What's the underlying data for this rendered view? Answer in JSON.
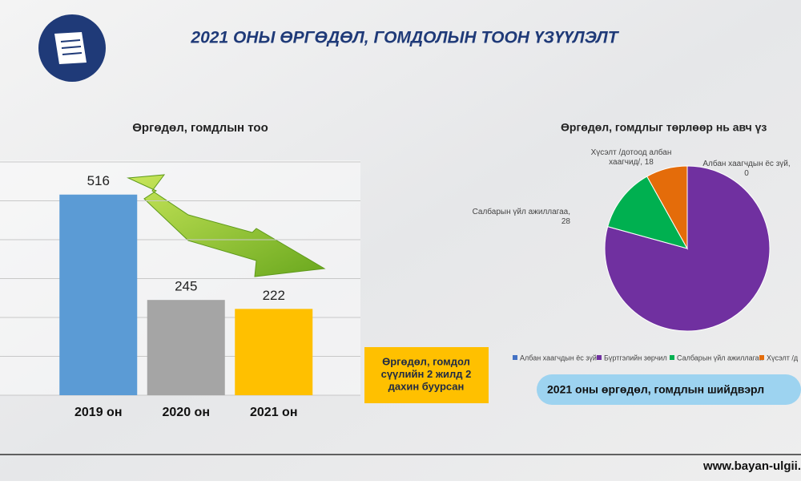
{
  "header": {
    "title": "2021 ОНЫ ӨРГӨДӨЛ, ГОМДОЛЫН ТООН ҮЗҮҮЛЭЛТ"
  },
  "chart_data": [
    {
      "type": "bar",
      "title": "Өргөдөл, гомдлын тоо",
      "categories": [
        "2019 он",
        "2020 он",
        "2021 он"
      ],
      "values": [
        516,
        245,
        222
      ],
      "colors": [
        "#5b9bd5",
        "#a5a5a5",
        "#ffc000"
      ],
      "ylim": [
        0,
        600
      ],
      "yticks": [
        0,
        100,
        200,
        300,
        400,
        500,
        600
      ],
      "grid": true
    },
    {
      "type": "pie",
      "title": "Өргөдөл, гомдлыг төрлөөр нь авч үз",
      "categories": [
        "Албан хаагчдын ёс зүй",
        "Бүртгэлийн зөрчил",
        "Салбарын үйл ажиллагаа",
        "Хүсэлт /д"
      ],
      "values": [
        0,
        176,
        28,
        18
      ],
      "value_labels": [
        "Албан хаагчдын ёс зүй, 0",
        null,
        "Салбарын үйл ажиллагаа, 28",
        "Хүсэлт /дотоод албан хаагчид/, 18"
      ],
      "colors": [
        "#4472c4",
        "#7030a0",
        "#00b050",
        "#e46c0a"
      ],
      "legend": "bottom"
    }
  ],
  "callouts": [
    "Өргөдөл, гомдол сүүлийн 2 жилд 2 дахин буурсан",
    "2021 оны өргөдөл, гомдлын шийдвэрл"
  ],
  "footer": "www.bayan-ulgii."
}
